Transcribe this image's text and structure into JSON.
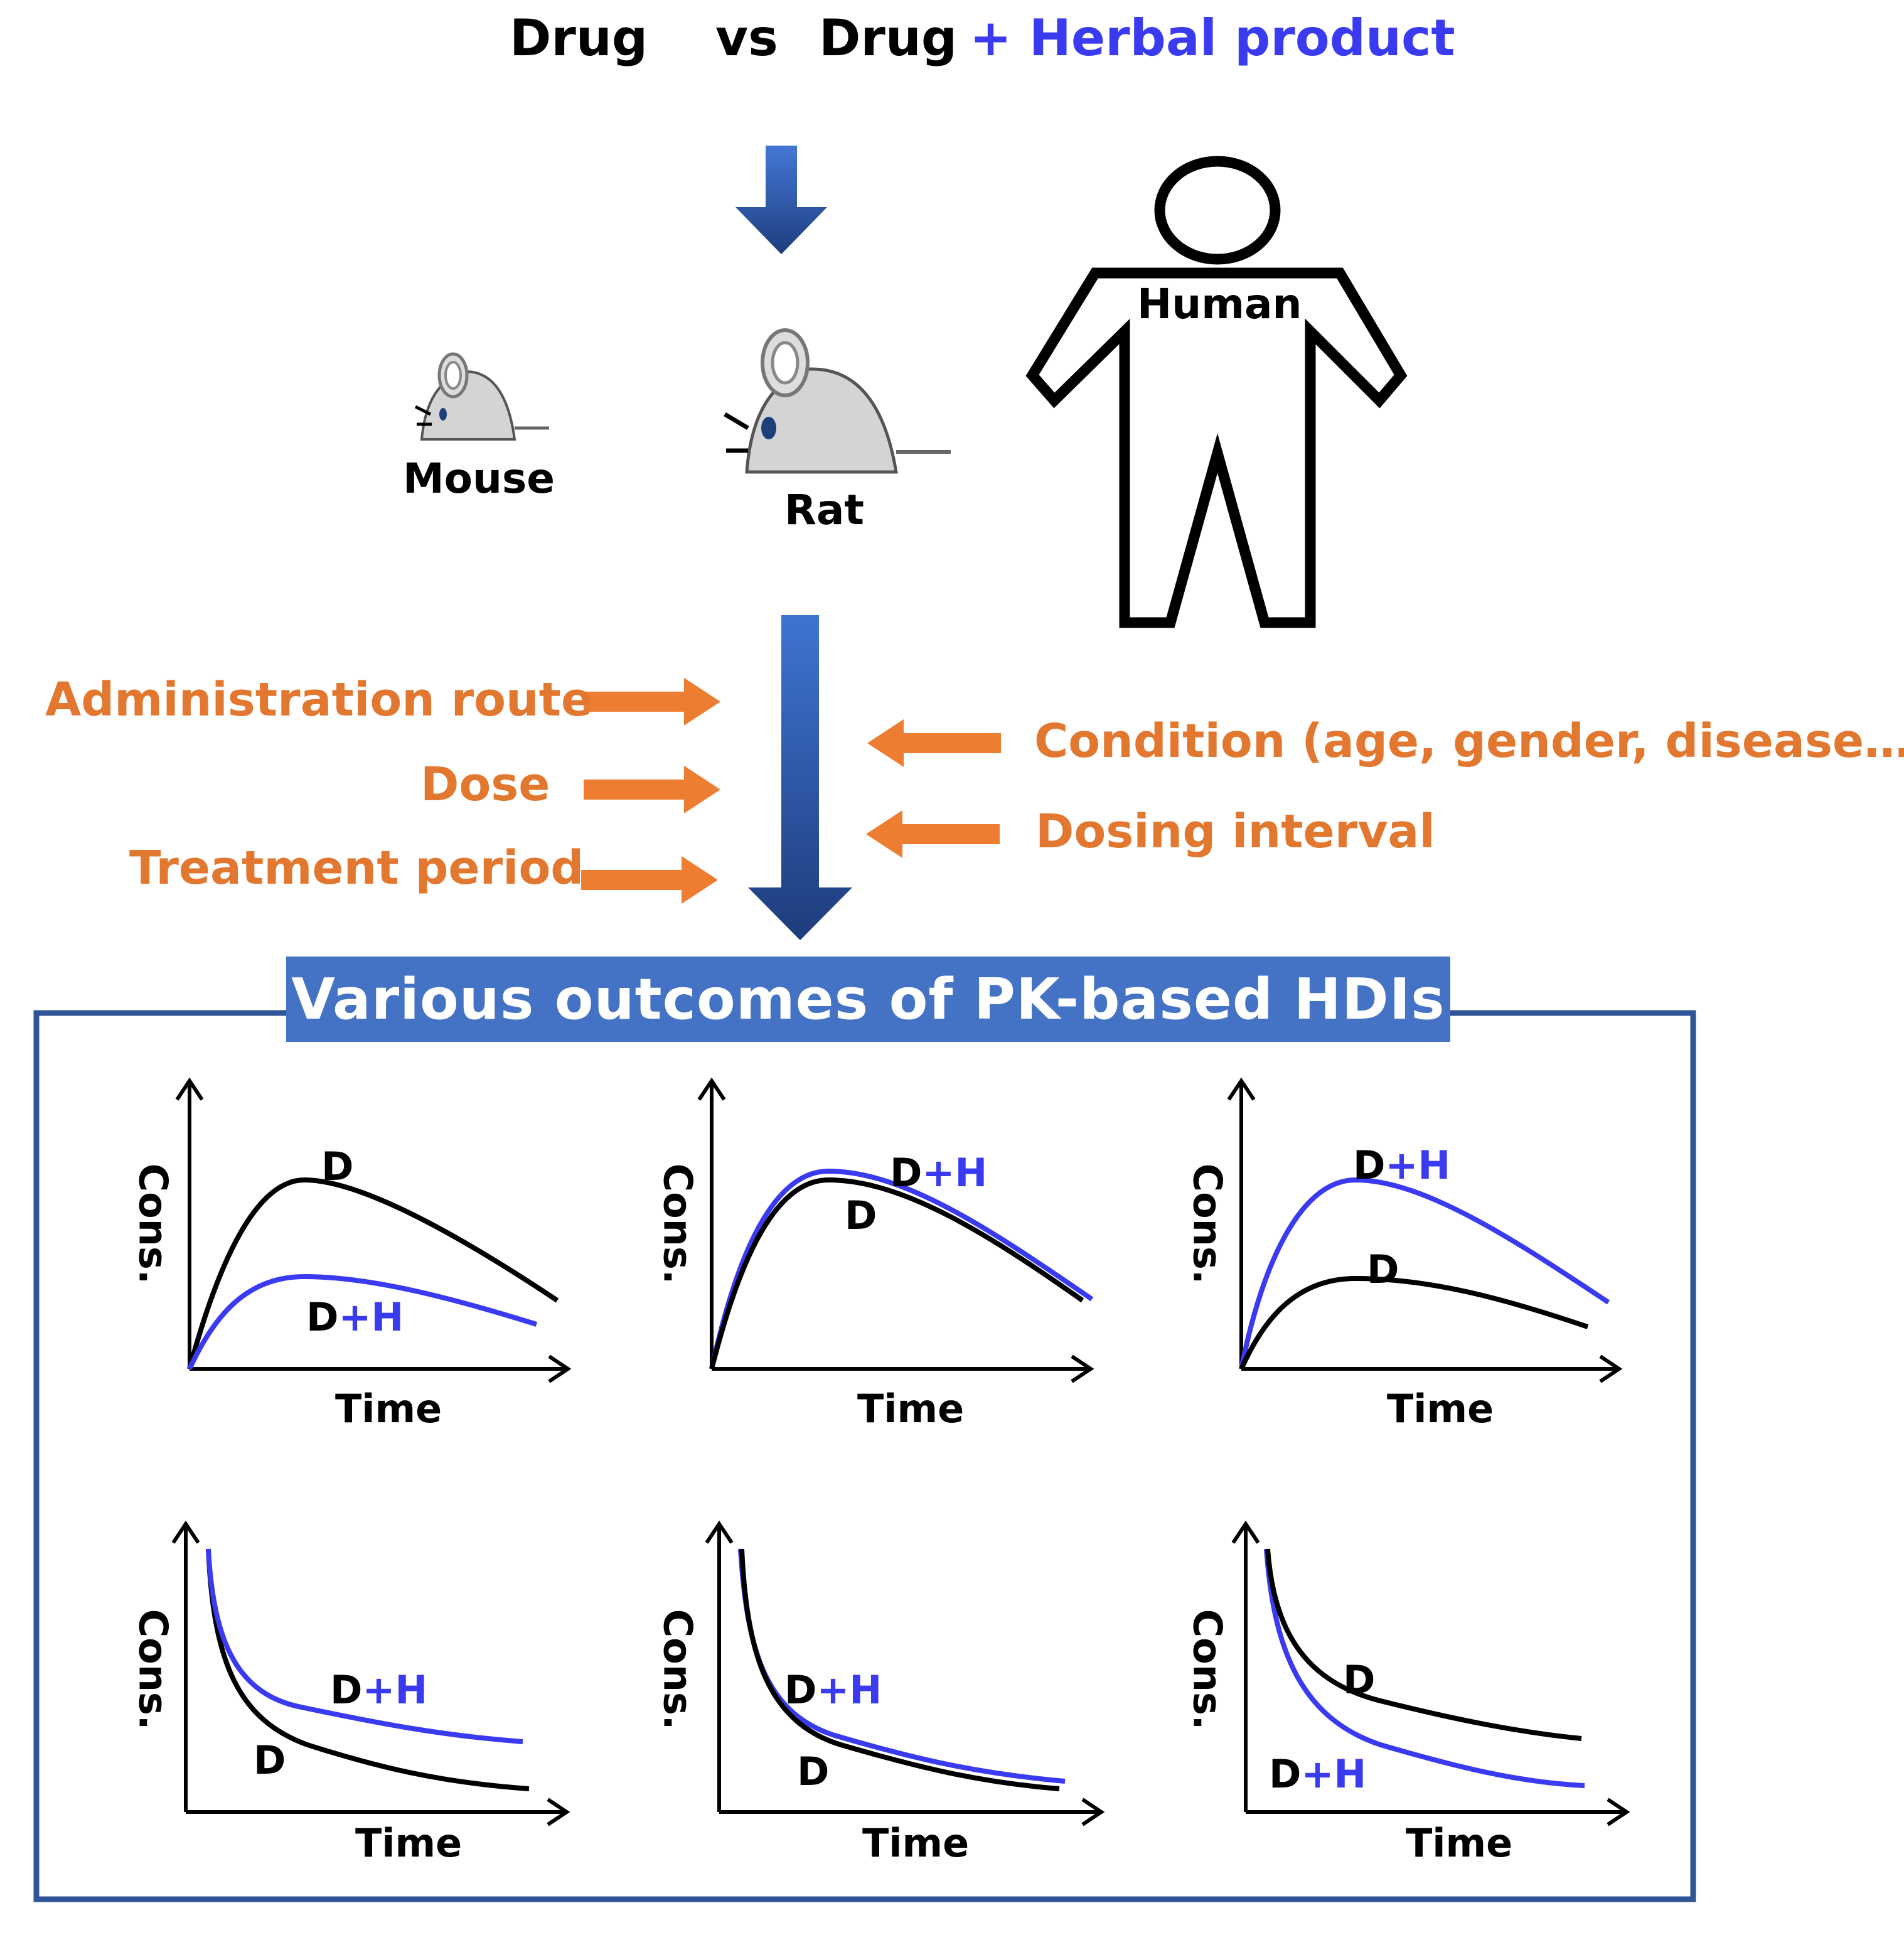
{
  "header": {
    "drug_left": "Drug",
    "vs": "vs",
    "drug_right": "Drug",
    "plus_herbal": "+ Herbal product"
  },
  "animals": {
    "mouse": "Mouse",
    "rat": "Rat",
    "human": "Human"
  },
  "factors_left": {
    "administration_route": "Administration route",
    "dose": "Dose",
    "treatment_period": "Treatment period"
  },
  "factors_right": {
    "condition": "Condition (age, gender, disease…)",
    "dosing_interval": "Dosing interval"
  },
  "outcomes": {
    "title": "Various outcomes of PK-based HDIs"
  },
  "colors": {
    "drug_curve": "#000000",
    "herbal_curve": "#3a3af0",
    "factor_text": "#e2772f",
    "banner": "#4472c4"
  },
  "chart_data": [
    {
      "type": "line",
      "panel": "absorption-decrease",
      "xlabel": "Time",
      "ylabel": "Cons.",
      "series": [
        {
          "name": "D",
          "label": "D"
        },
        {
          "name": "D+H",
          "label_d": "D",
          "label_plus": "+",
          "label_h": "H"
        }
      ]
    },
    {
      "type": "line",
      "panel": "absorption-no-change",
      "xlabel": "Time",
      "ylabel": "Cons.",
      "series": [
        {
          "name": "D",
          "label": "D"
        },
        {
          "name": "D+H",
          "label_d": "D",
          "label_plus": "+",
          "label_h": "H"
        }
      ]
    },
    {
      "type": "line",
      "panel": "absorption-increase",
      "xlabel": "Time",
      "ylabel": "Cons.",
      "series": [
        {
          "name": "D",
          "label": "D"
        },
        {
          "name": "D+H",
          "label_d": "D",
          "label_plus": "+",
          "label_h": "H"
        }
      ]
    },
    {
      "type": "line",
      "panel": "elimination-increase",
      "xlabel": "Time",
      "ylabel": "Cons.",
      "series": [
        {
          "name": "D",
          "label": "D"
        },
        {
          "name": "D+H",
          "label_d": "D",
          "label_plus": "+",
          "label_h": "H"
        }
      ]
    },
    {
      "type": "line",
      "panel": "elimination-no-change",
      "xlabel": "Time",
      "ylabel": "Cons.",
      "series": [
        {
          "name": "D",
          "label": "D"
        },
        {
          "name": "D+H",
          "label_d": "D",
          "label_plus": "+",
          "label_h": "H"
        }
      ]
    },
    {
      "type": "line",
      "panel": "elimination-decrease",
      "xlabel": "Time",
      "ylabel": "Cons.",
      "series": [
        {
          "name": "D",
          "label": "D"
        },
        {
          "name": "D+H",
          "label_d": "D",
          "label_plus": "+",
          "label_h": "H"
        }
      ]
    }
  ]
}
